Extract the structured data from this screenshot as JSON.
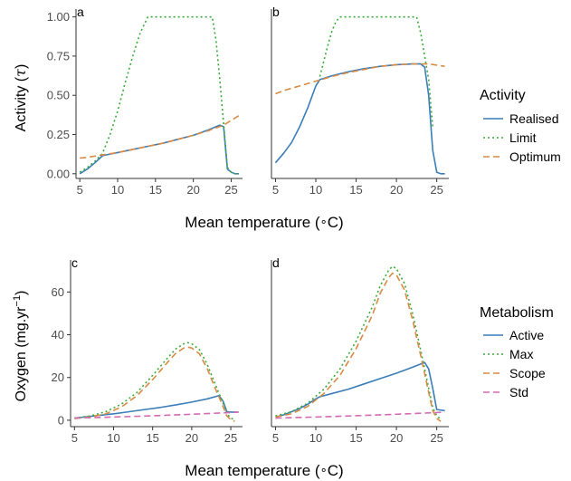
{
  "chart_data": [
    {
      "type": "line",
      "panel": "a",
      "xlabel": "Mean temperature (∘C)",
      "ylabel": "Activity (τ)",
      "xlim": [
        4.5,
        26.5
      ],
      "ylim": [
        -0.03,
        1.05
      ],
      "xticks": [
        5,
        10,
        15,
        20,
        25
      ],
      "yticks": [
        0,
        0.25,
        0.5,
        0.75,
        1.0
      ],
      "ytick_labels": [
        "0.00",
        "0.25",
        "0.50",
        "0.75",
        "1.00"
      ],
      "grid": false,
      "legend": "right",
      "series": [
        {
          "name": "Realised",
          "color": "#3b7db8",
          "dash": "solid",
          "x": [
            5,
            6,
            7,
            8,
            10,
            12,
            14,
            16,
            18,
            20,
            22,
            23,
            23.5,
            24,
            24.5,
            25,
            25.5,
            26
          ],
          "y": [
            0.0,
            0.03,
            0.07,
            0.115,
            0.135,
            0.155,
            0.175,
            0.195,
            0.22,
            0.245,
            0.28,
            0.3,
            0.31,
            0.3,
            0.03,
            0.01,
            0.0,
            0.0
          ]
        },
        {
          "name": "Limit",
          "color": "#3aaa3a",
          "dash": "dotted",
          "x": [
            5,
            6,
            7,
            8,
            9,
            10,
            11,
            12,
            13,
            14,
            22.5,
            23,
            23.5,
            24,
            24.5,
            25,
            25.5,
            26
          ],
          "y": [
            0.01,
            0.04,
            0.08,
            0.13,
            0.25,
            0.4,
            0.58,
            0.75,
            0.9,
            1.0,
            1.0,
            0.85,
            0.6,
            0.32,
            0.04,
            0.01,
            0.0,
            0.0
          ]
        },
        {
          "name": "Optimum",
          "color": "#d98b44",
          "dash": "dashed",
          "x": [
            5,
            6,
            8,
            10,
            12,
            14,
            16,
            18,
            20,
            22,
            24,
            26
          ],
          "y": [
            0.1,
            0.105,
            0.12,
            0.135,
            0.155,
            0.175,
            0.195,
            0.22,
            0.245,
            0.275,
            0.31,
            0.37
          ]
        }
      ]
    },
    {
      "type": "line",
      "panel": "b",
      "xlabel": "Mean temperature (∘C)",
      "ylabel": "Activity (τ)",
      "xlim": [
        4.5,
        26.5
      ],
      "ylim": [
        -0.03,
        1.05
      ],
      "xticks": [
        5,
        10,
        15,
        20,
        25
      ],
      "grid": false,
      "series": [
        {
          "name": "Realised",
          "color": "#3b7db8",
          "dash": "solid",
          "x": [
            5,
            6,
            7,
            8,
            9,
            10,
            10.5,
            12,
            14,
            16,
            18,
            20,
            22,
            23,
            23.5,
            24,
            24.5,
            25,
            25.5,
            26
          ],
          "y": [
            0.07,
            0.13,
            0.2,
            0.3,
            0.42,
            0.56,
            0.6,
            0.625,
            0.65,
            0.67,
            0.685,
            0.695,
            0.7,
            0.7,
            0.68,
            0.5,
            0.15,
            0.01,
            0.0,
            0.0
          ]
        },
        {
          "name": "Limit",
          "color": "#3aaa3a",
          "dash": "dotted",
          "x": [
            10.5,
            11,
            11.5,
            12,
            12.5,
            13,
            22.5,
            23,
            23.5,
            24,
            24.5
          ],
          "y": [
            0.62,
            0.72,
            0.82,
            0.91,
            0.97,
            1.0,
            1.0,
            0.9,
            0.75,
            0.6,
            0.3
          ]
        },
        {
          "name": "Optimum",
          "color": "#d98b44",
          "dash": "dashed",
          "x": [
            5,
            6,
            8,
            10,
            12,
            14,
            16,
            18,
            20,
            22,
            24,
            26
          ],
          "y": [
            0.51,
            0.53,
            0.56,
            0.59,
            0.62,
            0.645,
            0.665,
            0.685,
            0.695,
            0.7,
            0.7,
            0.685
          ]
        }
      ]
    },
    {
      "type": "line",
      "panel": "c",
      "xlabel": "Mean temperature (∘C)",
      "ylabel": "Oxygen (mg.yr⁻¹)",
      "xlim": [
        4.5,
        26.5
      ],
      "ylim": [
        -3,
        75
      ],
      "xticks": [
        5,
        10,
        15,
        20,
        25
      ],
      "yticks": [
        0,
        20,
        40,
        60
      ],
      "grid": false,
      "legend": "right",
      "series": [
        {
          "name": "Active",
          "color": "#3b7db8",
          "dash": "solid",
          "x": [
            5,
            6,
            8,
            10,
            12,
            14,
            16,
            18,
            20,
            22,
            23.5,
            24,
            24.5,
            25,
            26
          ],
          "y": [
            1.0,
            1.4,
            2.2,
            3.0,
            4.0,
            5.0,
            6.0,
            7.2,
            8.5,
            10.0,
            11.5,
            9.0,
            4.0,
            3.8,
            3.8
          ]
        },
        {
          "name": "Max",
          "color": "#3aaa3a",
          "dash": "dotted",
          "x": [
            5,
            7,
            9,
            11,
            13,
            15,
            17,
            18,
            19,
            19.5,
            20,
            21,
            22,
            23,
            24,
            24.5,
            25,
            25.5
          ],
          "y": [
            1.0,
            2.0,
            4.0,
            7.5,
            13.0,
            21.0,
            29.5,
            33.5,
            35.8,
            36.3,
            35.8,
            33.0,
            26.0,
            17.0,
            8.0,
            3.0,
            1.0,
            0.2
          ]
        },
        {
          "name": "Scope",
          "color": "#d98b44",
          "dash": "dashed",
          "x": [
            5,
            7,
            9,
            11,
            13,
            15,
            17,
            18,
            19,
            19.5,
            20,
            21,
            22,
            23,
            24,
            24.5,
            25,
            25.5
          ],
          "y": [
            0.8,
            1.5,
            3.0,
            6.2,
            11.5,
            19.0,
            27.5,
            31.5,
            33.8,
            34.2,
            33.8,
            31.0,
            24.0,
            15.0,
            6.5,
            2.0,
            0.3,
            -0.5
          ]
        },
        {
          "name": "Std",
          "color": "#d46ab0",
          "dash": "dashed",
          "x": [
            5,
            10,
            15,
            20,
            25,
            26
          ],
          "y": [
            1.0,
            1.5,
            2.1,
            2.8,
            3.6,
            3.8
          ]
        }
      ]
    },
    {
      "type": "line",
      "panel": "d",
      "xlabel": "Mean temperature (∘C)",
      "ylabel": "Oxygen (mg.yr⁻¹)",
      "xlim": [
        4.5,
        26.5
      ],
      "ylim": [
        -3,
        75
      ],
      "xticks": [
        5,
        10,
        15,
        20,
        25
      ],
      "grid": false,
      "series": [
        {
          "name": "Active",
          "color": "#3b7db8",
          "dash": "solid",
          "x": [
            5,
            6,
            7,
            8,
            9,
            10,
            10.5,
            12,
            14,
            16,
            18,
            20,
            22,
            23,
            23.5,
            24,
            24.5,
            25,
            26
          ],
          "y": [
            1.5,
            2.5,
            4.0,
            5.5,
            7.5,
            10.0,
            11.0,
            12.5,
            14.5,
            17.0,
            19.5,
            22.0,
            24.8,
            26.3,
            27.0,
            24.0,
            15.0,
            5.0,
            4.5
          ]
        },
        {
          "name": "Max",
          "color": "#3aaa3a",
          "dash": "dotted",
          "x": [
            5,
            7,
            9,
            11,
            13,
            15,
            17,
            18,
            19,
            19.5,
            20,
            21,
            22,
            23,
            24,
            24.5,
            25,
            25.5
          ],
          "y": [
            2.0,
            4.0,
            8.0,
            14.5,
            24.0,
            37.0,
            53.0,
            63.0,
            70.0,
            72.0,
            71.0,
            64.0,
            50.0,
            33.0,
            15.0,
            6.0,
            2.0,
            0.5
          ]
        },
        {
          "name": "Scope",
          "color": "#d98b44",
          "dash": "dashed",
          "x": [
            5,
            7,
            9,
            11,
            13,
            15,
            17,
            18,
            19,
            19.5,
            20,
            21,
            22,
            23,
            24,
            24.5,
            25,
            25.5
          ],
          "y": [
            1.5,
            3.0,
            6.5,
            12.5,
            21.0,
            33.5,
            49.0,
            59.5,
            66.5,
            68.8,
            68.0,
            61.0,
            47.0,
            30.5,
            13.0,
            4.5,
            0.8,
            -0.5
          ]
        },
        {
          "name": "Std",
          "color": "#d46ab0",
          "dash": "dashed",
          "x": [
            5,
            10,
            15,
            20,
            25,
            26
          ],
          "y": [
            1.0,
            1.5,
            2.1,
            2.8,
            3.6,
            3.8
          ]
        }
      ]
    }
  ],
  "legends": {
    "activity": {
      "title": "Activity",
      "entries": [
        {
          "label": "Realised",
          "color": "#3b7db8",
          "dash": "solid"
        },
        {
          "label": "Limit",
          "color": "#3aaa3a",
          "dash": "dotted"
        },
        {
          "label": "Optimum",
          "color": "#d98b44",
          "dash": "dashed"
        }
      ]
    },
    "metabolism": {
      "title": "Metabolism",
      "entries": [
        {
          "label": "Active",
          "color": "#3b7db8",
          "dash": "solid"
        },
        {
          "label": "Max",
          "color": "#3aaa3a",
          "dash": "dotted"
        },
        {
          "label": "Scope",
          "color": "#d98b44",
          "dash": "dashed"
        },
        {
          "label": "Std",
          "color": "#d46ab0",
          "dash": "dashed"
        }
      ]
    }
  },
  "labels": {
    "activity_axis_word": "Activity",
    "activity_axis_symbol": "τ",
    "oxygen_axis_word": "Oxygen",
    "oxygen_axis_unit": "mg.yr",
    "oxygen_axis_exp": "−1",
    "temp_axis_word": "Mean temperature",
    "temp_axis_deg": "∘",
    "temp_axis_unit": "C"
  },
  "colors": {
    "axis": "#333333",
    "tick_label": "#4d4d4d"
  }
}
